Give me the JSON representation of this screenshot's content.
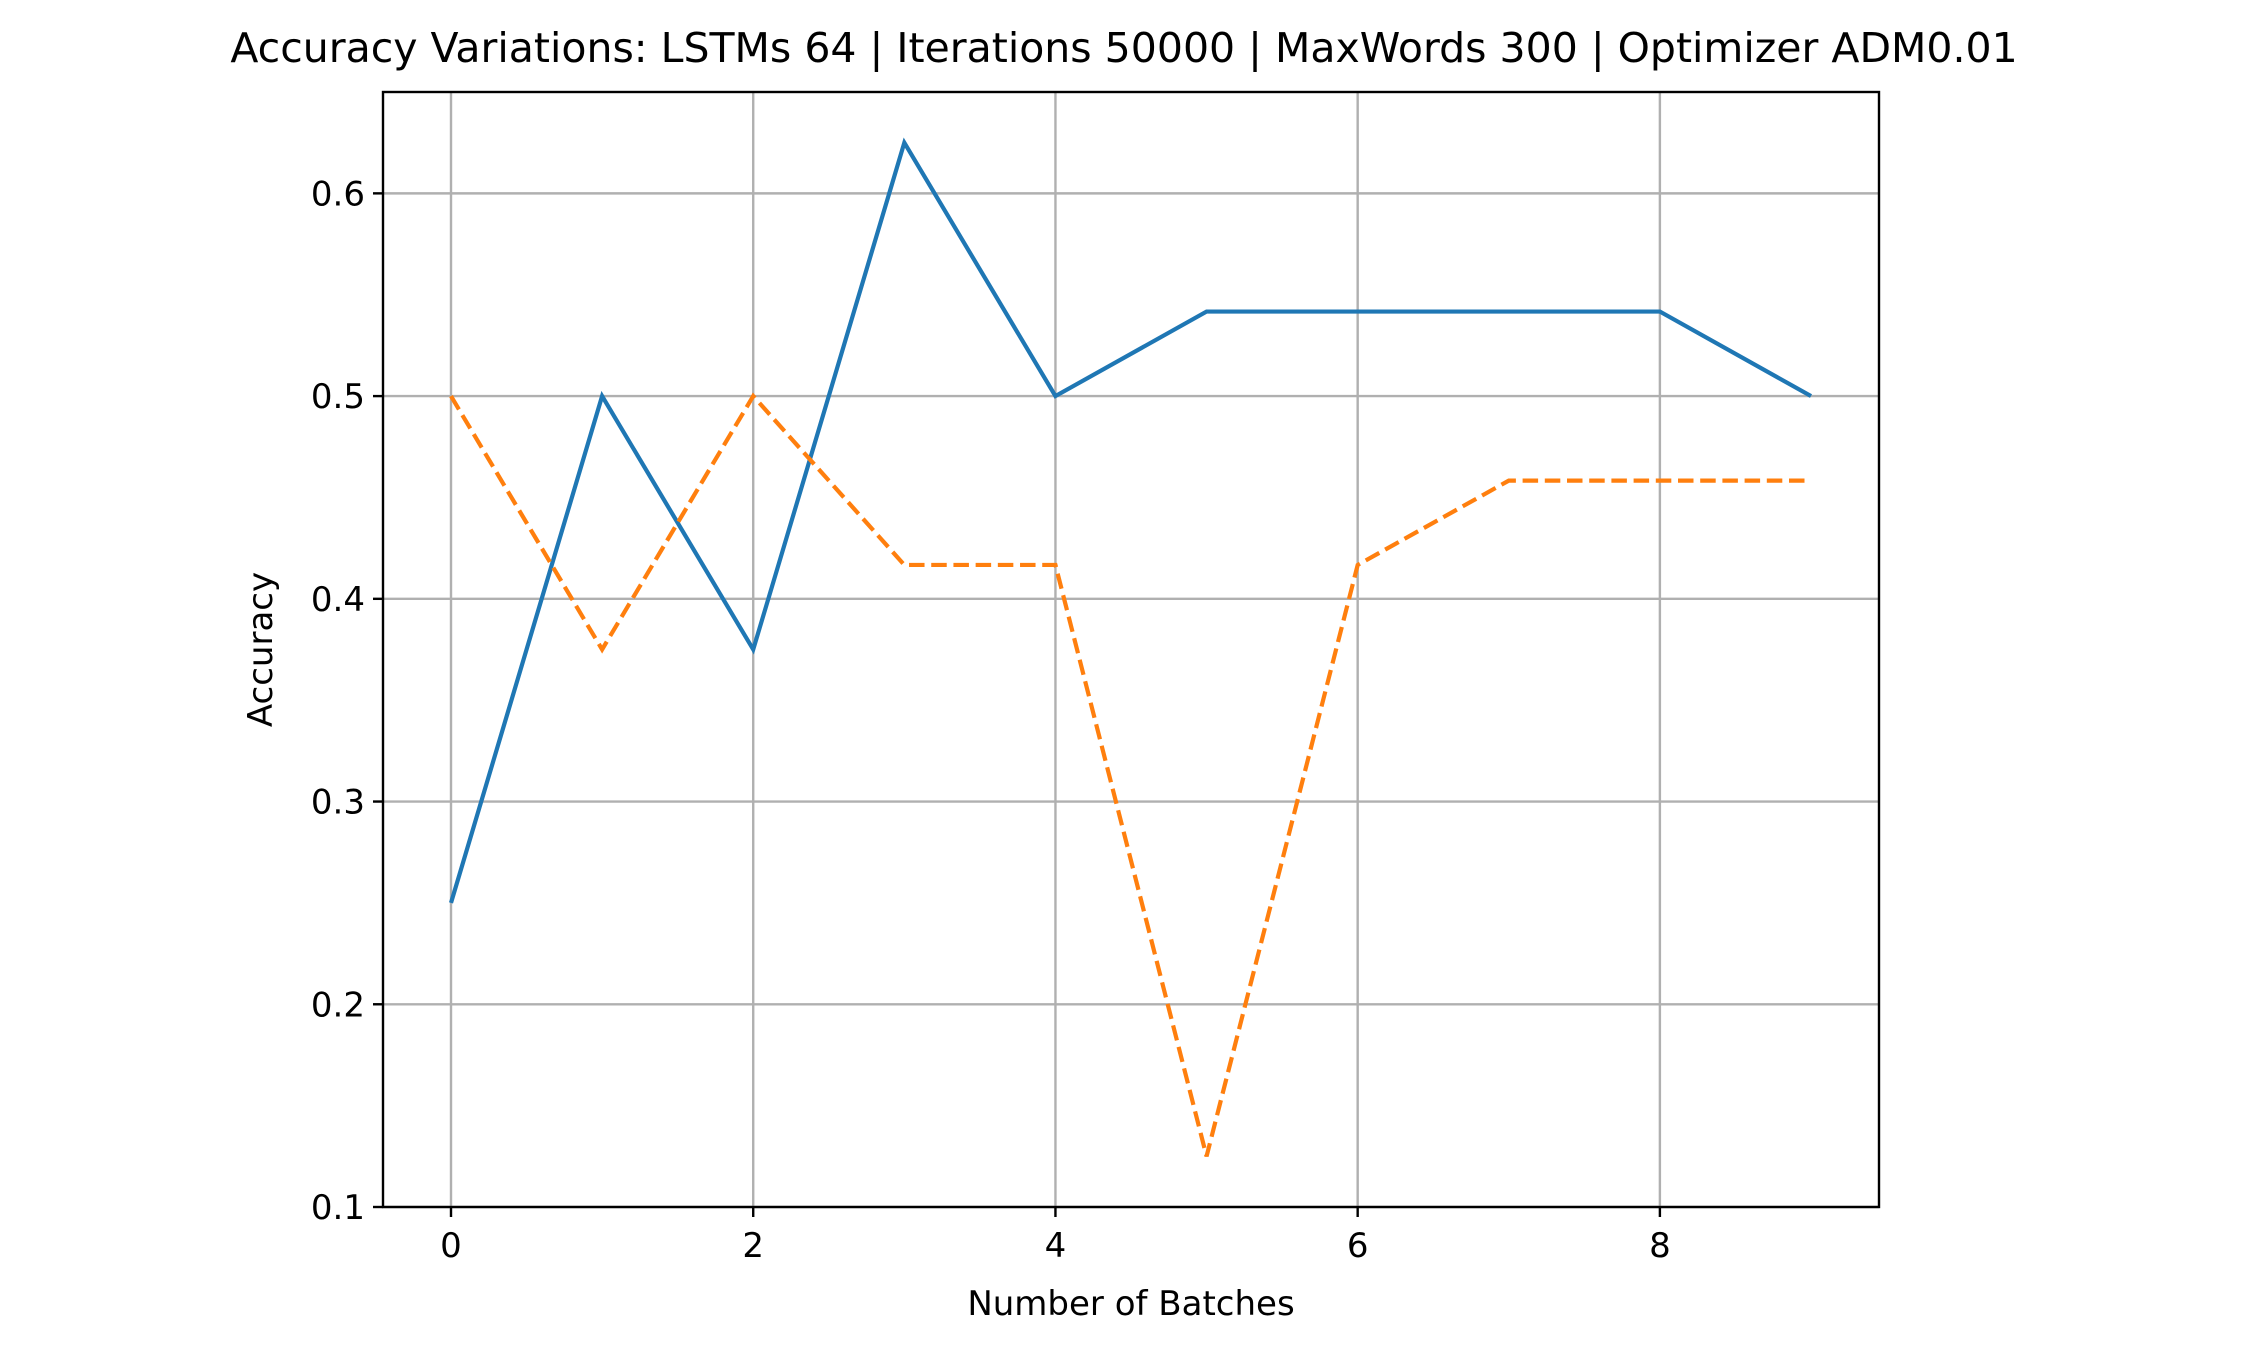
{
  "chart_data": {
    "type": "line",
    "title": "Accuracy Variations: LSTMs 64 | Iterations 50000 | MaxWords 300 | Optimizer ADM0.01",
    "xlabel": "Number of Batches",
    "ylabel": "Accuracy",
    "xlim": [
      -0.45,
      9.45
    ],
    "ylim": [
      0.1,
      0.65
    ],
    "xticks": [
      0,
      2,
      4,
      6,
      8
    ],
    "yticks": [
      0.1,
      0.2,
      0.3,
      0.4,
      0.5,
      0.6
    ],
    "grid": true,
    "x": [
      0,
      1,
      2,
      3,
      4,
      5,
      6,
      7,
      8,
      9
    ],
    "series": [
      {
        "values": [
          0.25,
          0.5,
          0.375,
          0.625,
          0.5,
          0.5417,
          0.5417,
          0.5417,
          0.5417,
          0.5
        ],
        "color": "#1f77b4",
        "style": "solid"
      },
      {
        "values": [
          0.5,
          0.375,
          0.5,
          0.4167,
          0.4167,
          0.125,
          0.4167,
          0.4583,
          0.4583,
          0.4583
        ],
        "color": "#ff7f0e",
        "style": "dashed"
      }
    ]
  }
}
